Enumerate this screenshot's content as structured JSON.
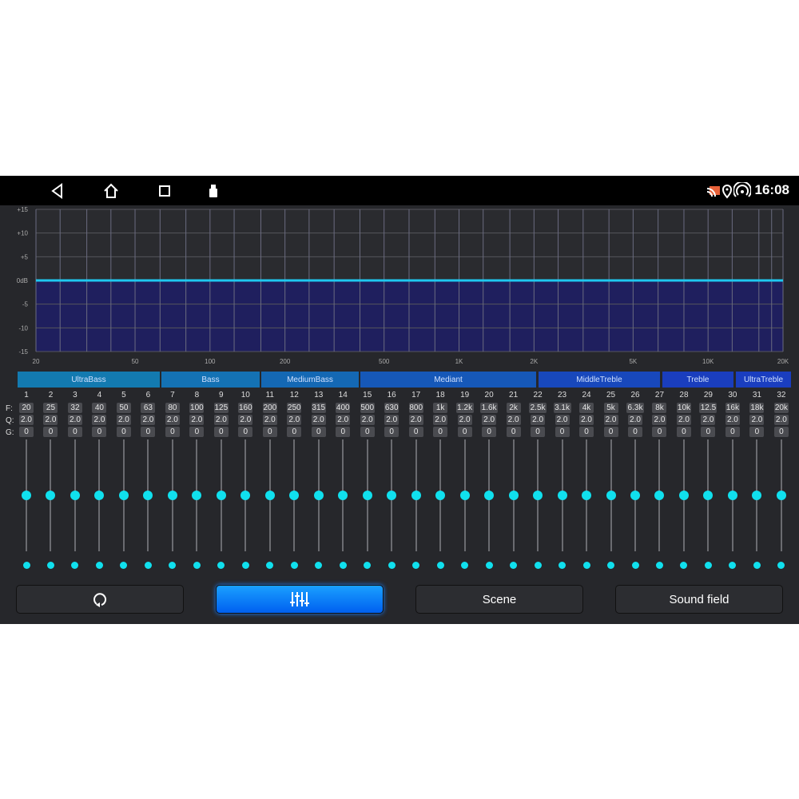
{
  "status_bar": {
    "time": "16:08",
    "icons": [
      "back-icon",
      "home-icon",
      "recents-icon",
      "usb-icon",
      "cast-icon",
      "location-icon",
      "hotspot-icon"
    ]
  },
  "chart_data": {
    "type": "line",
    "title": "",
    "x_scale": "log",
    "xlim": [
      20,
      20000
    ],
    "ylim": [
      -15,
      15
    ],
    "y_ticks": [
      "+15",
      "+10",
      "+5",
      "0dB",
      "-5",
      "-10",
      "-15"
    ],
    "y_tick_values": [
      15,
      10,
      5,
      0,
      -5,
      -10,
      -15
    ],
    "x_ticks": [
      "20",
      "50",
      "100",
      "200",
      "500",
      "1K",
      "2K",
      "5K",
      "10K",
      "20K"
    ],
    "x_tick_values": [
      20,
      50,
      100,
      200,
      500,
      1000,
      2000,
      5000,
      10000,
      20000
    ],
    "grid_freqs": [
      20,
      25,
      32,
      40,
      50,
      63,
      80,
      100,
      125,
      160,
      200,
      250,
      315,
      400,
      500,
      630,
      800,
      1000,
      1250,
      1600,
      2000,
      2500,
      3150,
      4000,
      5000,
      6300,
      8000,
      10000,
      12500,
      16000,
      18000,
      20000
    ],
    "series": [
      {
        "values": [
          0,
          0,
          0,
          0,
          0,
          0,
          0,
          0,
          0,
          0,
          0,
          0,
          0,
          0,
          0,
          0,
          0,
          0,
          0,
          0,
          0,
          0,
          0,
          0,
          0,
          0,
          0,
          0,
          0,
          0,
          0,
          0
        ]
      }
    ],
    "colors": {
      "line": "#1ec8f0",
      "fill": "#1f1f5e",
      "grid": "#55565c"
    }
  },
  "band_groups": [
    {
      "label": "UltraBass",
      "color": "#137ab0"
    },
    {
      "label": "Bass",
      "color": "#1472b4"
    },
    {
      "label": "MediumBass",
      "color": "#1468b4"
    },
    {
      "label": "Mediant",
      "color": "#1658b8"
    },
    {
      "label": "MiddleTreble",
      "color": "#1848bc"
    },
    {
      "label": "Treble",
      "color": "#1a3ebe"
    },
    {
      "label": "UltraTreble",
      "color": "#1a3ec0"
    }
  ],
  "row_labels": {
    "f": "F:",
    "q": "Q:",
    "g": "G:"
  },
  "bands": [
    {
      "n": "1",
      "f": "20",
      "q": "2.0",
      "g": "0"
    },
    {
      "n": "2",
      "f": "25",
      "q": "2.0",
      "g": "0"
    },
    {
      "n": "3",
      "f": "32",
      "q": "2.0",
      "g": "0"
    },
    {
      "n": "4",
      "f": "40",
      "q": "2.0",
      "g": "0"
    },
    {
      "n": "5",
      "f": "50",
      "q": "2.0",
      "g": "0"
    },
    {
      "n": "6",
      "f": "63",
      "q": "2.0",
      "g": "0"
    },
    {
      "n": "7",
      "f": "80",
      "q": "2.0",
      "g": "0"
    },
    {
      "n": "8",
      "f": "100",
      "q": "2.0",
      "g": "0"
    },
    {
      "n": "9",
      "f": "125",
      "q": "2.0",
      "g": "0"
    },
    {
      "n": "10",
      "f": "160",
      "q": "2.0",
      "g": "0"
    },
    {
      "n": "11",
      "f": "200",
      "q": "2.0",
      "g": "0"
    },
    {
      "n": "12",
      "f": "250",
      "q": "2.0",
      "g": "0"
    },
    {
      "n": "13",
      "f": "315",
      "q": "2.0",
      "g": "0"
    },
    {
      "n": "14",
      "f": "400",
      "q": "2.0",
      "g": "0"
    },
    {
      "n": "15",
      "f": "500",
      "q": "2.0",
      "g": "0"
    },
    {
      "n": "16",
      "f": "630",
      "q": "2.0",
      "g": "0"
    },
    {
      "n": "17",
      "f": "800",
      "q": "2.0",
      "g": "0"
    },
    {
      "n": "18",
      "f": "1k",
      "q": "2.0",
      "g": "0"
    },
    {
      "n": "19",
      "f": "1.2k",
      "q": "2.0",
      "g": "0"
    },
    {
      "n": "20",
      "f": "1.6k",
      "q": "2.0",
      "g": "0"
    },
    {
      "n": "21",
      "f": "2k",
      "q": "2.0",
      "g": "0"
    },
    {
      "n": "22",
      "f": "2.5k",
      "q": "2.0",
      "g": "0"
    },
    {
      "n": "23",
      "f": "3.1k",
      "q": "2.0",
      "g": "0"
    },
    {
      "n": "24",
      "f": "4k",
      "q": "2.0",
      "g": "0"
    },
    {
      "n": "25",
      "f": "5k",
      "q": "2.0",
      "g": "0"
    },
    {
      "n": "26",
      "f": "6.3k",
      "q": "2.0",
      "g": "0"
    },
    {
      "n": "27",
      "f": "8k",
      "q": "2.0",
      "g": "0"
    },
    {
      "n": "28",
      "f": "10k",
      "q": "2.0",
      "g": "0"
    },
    {
      "n": "29",
      "f": "12.5",
      "q": "2.0",
      "g": "0"
    },
    {
      "n": "30",
      "f": "16k",
      "q": "2.0",
      "g": "0"
    },
    {
      "n": "31",
      "f": "18k",
      "q": "2.0",
      "g": "0"
    },
    {
      "n": "32",
      "f": "20k",
      "q": "2.0",
      "g": "0"
    }
  ],
  "gain_range": [
    -15,
    15
  ],
  "buttons": [
    {
      "label": "",
      "icon": "reset-icon"
    },
    {
      "label": "",
      "icon": "equalizer-icon",
      "active": true
    },
    {
      "label": "Scene"
    },
    {
      "label": "Sound field"
    }
  ],
  "accent": "#10e0ee"
}
